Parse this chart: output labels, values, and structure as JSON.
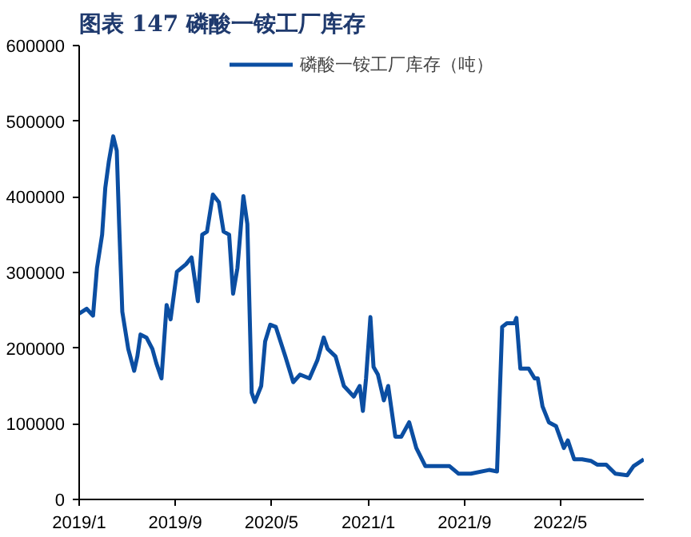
{
  "chart_data": {
    "type": "line",
    "title": "图表 147  磷酸一铵工厂库存",
    "x": [
      "2019-01-01",
      "2019-01-20",
      "2019-02-05",
      "2019-02-15",
      "2019-02-28",
      "2019-03-08",
      "2019-03-17",
      "2019-03-28",
      "2019-04-06",
      "2019-04-12",
      "2019-04-20",
      "2019-05-05",
      "2019-05-20",
      "2019-05-28",
      "2019-06-05",
      "2019-06-20",
      "2019-07-05",
      "2019-07-15",
      "2019-07-28",
      "2019-08-10",
      "2019-08-20",
      "2019-09-05",
      "2019-09-28",
      "2019-10-12",
      "2019-10-28",
      "2019-11-08",
      "2019-11-20",
      "2019-12-05",
      "2019-12-20",
      "2020-01-01",
      "2020-01-15",
      "2020-01-25",
      "2020-02-05",
      "2020-02-20",
      "2020-03-01",
      "2020-03-12",
      "2020-03-20",
      "2020-04-05",
      "2020-04-15",
      "2020-04-28",
      "2020-05-12",
      "2020-06-05",
      "2020-06-25",
      "2020-07-12",
      "2020-08-05",
      "2020-08-25",
      "2020-09-10",
      "2020-09-20",
      "2020-10-10",
      "2020-10-31",
      "2020-11-25",
      "2020-12-10",
      "2020-12-18",
      "2020-12-26",
      "2021-01-06",
      "2021-01-14",
      "2021-01-25",
      "2021-02-09",
      "2021-02-20",
      "2021-03-10",
      "2021-03-25",
      "2021-04-14",
      "2021-05-02",
      "2021-05-25",
      "2021-07-02",
      "2021-07-25",
      "2021-08-17",
      "2021-09-17",
      "2021-11-02",
      "2021-11-22",
      "2021-12-05",
      "2021-12-17",
      "2022-01-05",
      "2022-01-10",
      "2022-01-20",
      "2022-02-10",
      "2022-02-25",
      "2022-03-05",
      "2022-03-17",
      "2022-04-02",
      "2022-04-20",
      "2022-05-10",
      "2022-05-20",
      "2022-06-05",
      "2022-06-25",
      "2022-07-17",
      "2022-08-02",
      "2022-08-25",
      "2022-09-17",
      "2022-10-17",
      "2022-11-02",
      "2022-11-28"
    ],
    "series": [
      {
        "name": "磷酸一铵工厂库存（吨）",
        "color": "#0b4ea2",
        "values": [
          245600,
          252000,
          243000,
          306000,
          350000,
          412000,
          447000,
          480000,
          461000,
          364000,
          248000,
          199000,
          170000,
          189000,
          218000,
          214000,
          199000,
          180000,
          160000,
          257000,
          238000,
          301000,
          311000,
          320000,
          262000,
          350000,
          354000,
          403000,
          393000,
          354000,
          350000,
          272000,
          306000,
          401000,
          364000,
          141000,
          129000,
          150000,
          209000,
          231000,
          228000,
          189000,
          155000,
          165000,
          160000,
          184000,
          214000,
          199000,
          189000,
          150000,
          136000,
          150000,
          117000,
          160000,
          241000,
          175000,
          165000,
          131000,
          150000,
          83000,
          83000,
          102000,
          68000,
          44000,
          44000,
          44000,
          34000,
          34000,
          39000,
          37000,
          228000,
          233000,
          233000,
          240000,
          173000,
          173000,
          160000,
          160000,
          123000,
          102000,
          97000,
          68000,
          78000,
          53000,
          53000,
          51000,
          46000,
          46000,
          34000,
          32000,
          44000,
          53000
        ]
      }
    ],
    "xlim": [
      "2019-01-01",
      "2022-11-28"
    ],
    "xticks": [
      {
        "value": "2019-01-01",
        "label": "2019/1"
      },
      {
        "value": "2019-09-01",
        "label": "2019/9"
      },
      {
        "value": "2020-05-01",
        "label": "2020/5"
      },
      {
        "value": "2021-01-01",
        "label": "2021/1"
      },
      {
        "value": "2021-09-01",
        "label": "2021/9"
      },
      {
        "value": "2022-05-01",
        "label": "2022/5"
      }
    ],
    "ylim": [
      0,
      600000
    ],
    "yticks": [
      0,
      100000,
      200000,
      300000,
      400000,
      500000,
      600000
    ],
    "grid": false,
    "legend": "top",
    "line_style": "solid"
  }
}
